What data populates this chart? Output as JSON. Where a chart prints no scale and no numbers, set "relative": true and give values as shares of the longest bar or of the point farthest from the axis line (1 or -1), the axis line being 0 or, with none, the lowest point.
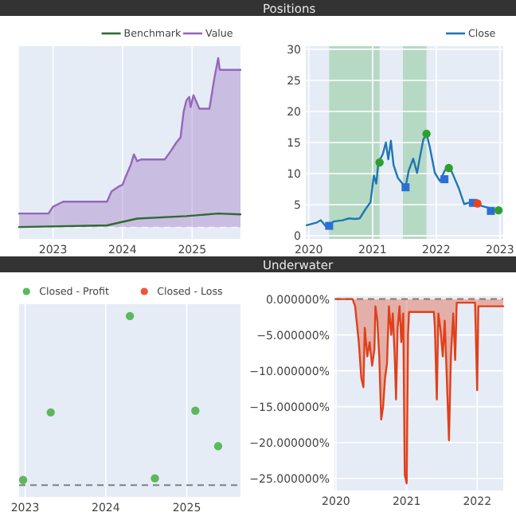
{
  "chart_data": [
    {
      "type": "area",
      "relative": true,
      "xlim": [
        "2022-07-07",
        "2025-09-12"
      ],
      "xticks": [
        "2023",
        "2024",
        "2025"
      ],
      "grid": "x",
      "legend": "top right",
      "ref_lines": [
        {
          "axis": "y",
          "value": 0,
          "line_style": "dashed",
          "color": "#ffffff"
        }
      ],
      "series": [
        {
          "name": "Benchmark",
          "type": "line",
          "color": "#2f6b2f",
          "x": [
            "2022-07-07",
            "2023-10-12",
            "2024-03-18",
            "2024-12-02",
            "2025-05-18",
            "2025-09-12"
          ],
          "values": [
            0.0,
            0.01,
            0.05,
            0.065,
            0.08,
            0.075
          ]
        },
        {
          "name": "Value",
          "color": "#9467bd",
          "x": [
            "2022-07-07",
            "2022-12-08",
            "2023-01-01",
            "2023-02-23",
            "2023-04-02",
            "2023-10-12",
            "2023-11-04",
            "2023-12-12",
            "2024-01-01",
            "2024-01-15",
            "2024-02-14",
            "2024-03-01",
            "2024-03-18",
            "2024-04-09",
            "2024-08-10",
            "2024-09-11",
            "2024-10-10",
            "2024-11-01",
            "2024-11-17",
            "2024-12-02",
            "2024-12-17",
            "2024-12-24",
            "2025-01-08",
            "2025-02-08",
            "2025-04-02",
            "2025-04-26",
            "2025-05-18",
            "2025-05-26",
            "2025-09-12"
          ],
          "values": [
            0.08,
            0.08,
            0.12,
            0.15,
            0.15,
            0.15,
            0.21,
            0.24,
            0.25,
            0.29,
            0.37,
            0.43,
            0.39,
            0.4,
            0.4,
            0.45,
            0.5,
            0.53,
            0.68,
            0.75,
            0.77,
            0.71,
            0.78,
            0.7,
            0.7,
            0.87,
            1.0,
            0.93,
            0.93
          ]
        }
      ]
    },
    {
      "type": "line",
      "title": "Positions",
      "xlim": [
        "2019-12-15",
        "2023-01-20"
      ],
      "xticks": [
        "2020",
        "2021",
        "2022",
        "2023"
      ],
      "ylim": [
        -0.5,
        30.5
      ],
      "yticks": [
        0,
        5,
        10,
        15,
        20,
        25,
        30
      ],
      "grid": true,
      "legend": "top right",
      "bands": [
        {
          "axis": "x",
          "from": "2020-04-27",
          "to": "2021-02-10",
          "color": "#2ca02c"
        },
        {
          "axis": "x",
          "from": "2021-06-24",
          "to": "2021-11-06",
          "color": "#2ca02c"
        }
      ],
      "series": [
        {
          "name": "Close",
          "color": "#1f77b4",
          "x": [
            "2019-12-20",
            "2020-02-14",
            "2020-03-10",
            "2020-04-05",
            "2020-04-27",
            "2020-05-22",
            "2020-07-13",
            "2020-08-19",
            "2020-09-24",
            "2020-10-19",
            "2020-11-24",
            "2020-12-20",
            "2021-01-08",
            "2021-01-22",
            "2021-02-03",
            "2021-02-28",
            "2021-03-18",
            "2021-04-01",
            "2021-04-16",
            "2021-05-01",
            "2021-05-26",
            "2021-06-21",
            "2021-07-09",
            "2021-07-27",
            "2021-08-22",
            "2021-09-13",
            "2021-09-27",
            "2021-10-19",
            "2021-11-06",
            "2021-11-24",
            "2021-12-24",
            "2022-01-22",
            "2022-02-17",
            "2022-03-14",
            "2022-04-09",
            "2022-05-12",
            "2022-06-10",
            "2022-07-20",
            "2022-08-25",
            "2022-10-01",
            "2022-11-10",
            "2022-12-16"
          ],
          "values": [
            1.7,
            2.1,
            2.5,
            1.6,
            1.6,
            2.3,
            2.5,
            2.8,
            2.7,
            2.8,
            4.4,
            5.4,
            9.7,
            8.4,
            11.8,
            13.1,
            15.0,
            12.3,
            15.3,
            11.4,
            9.3,
            8.4,
            7.8,
            10.5,
            12.4,
            10.1,
            12.3,
            15.5,
            16.4,
            14.4,
            10.1,
            8.8,
            10.4,
            11.4,
            9.7,
            7.5,
            5.1,
            5.4,
            5.0,
            4.7,
            4.4,
            3.9
          ]
        },
        {
          "type": "scatter",
          "marker": "square",
          "color": "#2b6fd6",
          "x": [
            "2020-04-27",
            "2021-07-09",
            "2022-02-17",
            "2022-07-30",
            "2022-11-10"
          ],
          "values": [
            1.6,
            7.8,
            9.1,
            5.3,
            4.0
          ]
        },
        {
          "type": "scatter",
          "marker": "circle",
          "color": "#2ca02c",
          "x": [
            "2021-02-10",
            "2021-11-06",
            "2022-03-14",
            "2022-12-24"
          ],
          "values": [
            11.8,
            16.4,
            10.9,
            4.1
          ]
        },
        {
          "type": "scatter",
          "marker": "circle",
          "color": "#e8441c",
          "x": [
            "2022-08-25"
          ],
          "values": [
            5.2
          ]
        }
      ]
    },
    {
      "type": "scatter",
      "relative": true,
      "xlim": [
        "2022-12-05",
        "2025-09-01"
      ],
      "xticks": [
        "2023",
        "2024",
        "2025"
      ],
      "grid": "x",
      "legend": "top right",
      "marker": "circle",
      "ref_lines": [
        {
          "axis": "y",
          "value": 0,
          "line_style": "dashed",
          "color": "#7f7f7f"
        }
      ],
      "series": [
        {
          "name": "Closed - Profit",
          "color": "#5cb85c",
          "x": [
            "2022-12-23",
            "2023-04-27",
            "2024-04-19",
            "2024-08-10",
            "2025-02-09",
            "2025-05-23"
          ],
          "values": [
            0.03,
            0.43,
            1.0,
            0.04,
            0.44,
            0.23
          ]
        },
        {
          "name": "Closed - Loss",
          "color": "#ef553b"
        }
      ]
    },
    {
      "type": "area",
      "title": "Underwater",
      "xlim": [
        "2019-12-24",
        "2022-05-16"
      ],
      "xticks": [
        "2020",
        "2021",
        "2022"
      ],
      "ylim": [
        -26.7,
        0.4
      ],
      "yticks": [
        {
          "value": 0,
          "label": "0.000000%"
        },
        {
          "value": -5,
          "label": "−5.000000%"
        },
        {
          "value": -10,
          "label": "−10.000000%"
        },
        {
          "value": -15,
          "label": "−15.000000%"
        },
        {
          "value": -20,
          "label": "−20.000000%"
        },
        {
          "value": -25,
          "label": "−25.000000%"
        }
      ],
      "grid": true,
      "ref_lines": [
        {
          "axis": "y",
          "value": 0,
          "line_style": "dashed",
          "color": "#7f7f7f"
        }
      ],
      "series": [
        {
          "color": "#e0401a",
          "x": [
            "2020-01-01",
            "2020-03-27",
            "2020-04-09",
            "2020-04-28",
            "2020-05-11",
            "2020-05-22",
            "2020-05-29",
            "2020-06-11",
            "2020-06-23",
            "2020-07-06",
            "2020-07-18",
            "2020-07-23",
            "2020-08-02",
            "2020-08-12",
            "2020-08-22",
            "2020-09-01",
            "2020-09-11",
            "2020-09-21",
            "2020-10-01",
            "2020-10-13",
            "2020-10-21",
            "2020-10-31",
            "2020-11-07",
            "2020-11-15",
            "2020-11-25",
            "2020-12-04",
            "2020-12-14",
            "2020-12-22",
            "2021-01-01",
            "2021-01-08",
            "2021-01-13",
            "2021-05-22",
            "2021-05-27",
            "2021-06-06",
            "2021-06-14",
            "2021-06-24",
            "2021-07-07",
            "2021-07-17",
            "2021-07-29",
            "2021-08-08",
            "2021-08-18",
            "2021-08-30",
            "2021-09-09",
            "2021-09-17",
            "2021-12-21",
            "2022-01-01",
            "2022-01-07",
            "2022-05-16"
          ],
          "values": [
            0,
            0,
            -1,
            -6,
            -11,
            -12.3,
            -4,
            -8,
            -6,
            -9.3,
            -7,
            -1,
            -3,
            -8,
            -16.8,
            -15,
            -11,
            -9,
            -1,
            -5,
            -2,
            -8,
            -14,
            -4,
            -1,
            -6,
            -2,
            -24.5,
            -25.7,
            -5,
            -1.8,
            -1.8,
            -4,
            -14,
            -2,
            -4,
            -8,
            -3,
            -12,
            -19.7,
            -8,
            -2,
            -8.5,
            -0.5,
            -0.5,
            -12.7,
            -1,
            -1
          ]
        }
      ]
    }
  ]
}
